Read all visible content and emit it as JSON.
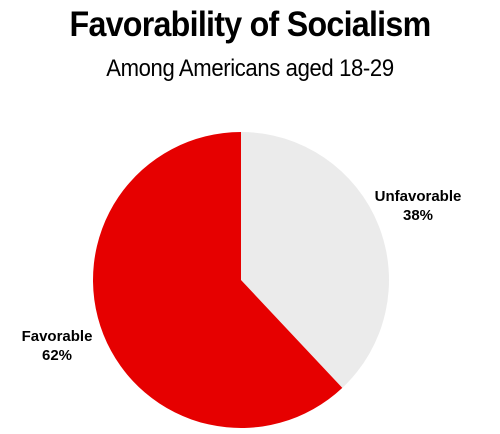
{
  "chart_data": {
    "type": "pie",
    "title": "Favorability of Socialism",
    "subtitle": "Among Americans aged 18-29",
    "slices": [
      {
        "name": "Unfavorable",
        "value": 38,
        "value_label": "38%",
        "color": "#ebebeb"
      },
      {
        "name": "Favorable",
        "value": 62,
        "value_label": "62%",
        "color": "#e60000"
      }
    ],
    "start_angle": "12 o'clock",
    "direction": "clockwise",
    "legend": "none",
    "labels": "outside slices"
  }
}
